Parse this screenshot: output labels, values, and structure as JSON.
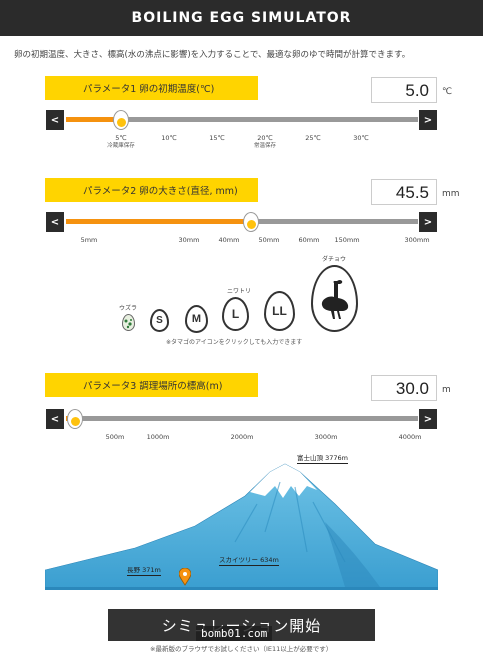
{
  "header": {
    "title": "BOILING EGG SIMULATOR"
  },
  "intro": "卵の初期温度、大きさ、標高(水の沸点に影響)を入力することで、最適な卵のゆで時間が計算できます。",
  "param1": {
    "label": "パラメータ1 卵の初期温度(℃)",
    "value": "5.0",
    "unit": "℃",
    "slider_value": 5,
    "ticks": [
      {
        "label": "5℃",
        "sub": "冷蔵庫保存"
      },
      {
        "label": "10℃",
        "sub": ""
      },
      {
        "label": "15℃",
        "sub": ""
      },
      {
        "label": "20℃",
        "sub": "常温保存"
      },
      {
        "label": "25℃",
        "sub": ""
      },
      {
        "label": "30℃",
        "sub": ""
      }
    ]
  },
  "param2": {
    "label": "パラメータ2 卵の大きさ(直径, mm)",
    "value": "45.5",
    "unit": "mm",
    "ticks": [
      "5mm",
      "30mm",
      "40mm",
      "50mm",
      "60mm",
      "150mm",
      "300mm"
    ]
  },
  "eggs": {
    "quail": {
      "name": "ウズラ"
    },
    "s": {
      "label": "S"
    },
    "m": {
      "label": "M"
    },
    "chicken": {
      "name": "ニワトリ"
    },
    "l": {
      "label": "L"
    },
    "ll": {
      "label": "LL"
    },
    "ostrich": {
      "name": "ダチョウ"
    },
    "note": "※タマゴのアイコンをクリックしても入力できます"
  },
  "param3": {
    "label": "パラメータ3 調理場所の標高(m)",
    "value": "30.0",
    "unit": "m",
    "ticks": [
      "500m",
      "1000m",
      "2000m",
      "3000m",
      "4000m"
    ]
  },
  "mountain": {
    "fuji": "富士山頂 3776m",
    "skytree": "スカイツリー 634m",
    "nagano": "長野 371m"
  },
  "arrows": {
    "left": "<",
    "right": ">"
  },
  "simulate_button": "シミュレーション開始",
  "watermark": "bomb01.com",
  "footnote": "※最新版のブラウザでお試しください（IE11以上が必要です）",
  "colors": {
    "accent": "#ffd400",
    "fill": "#f5920f",
    "dark": "#2b2b2b"
  }
}
